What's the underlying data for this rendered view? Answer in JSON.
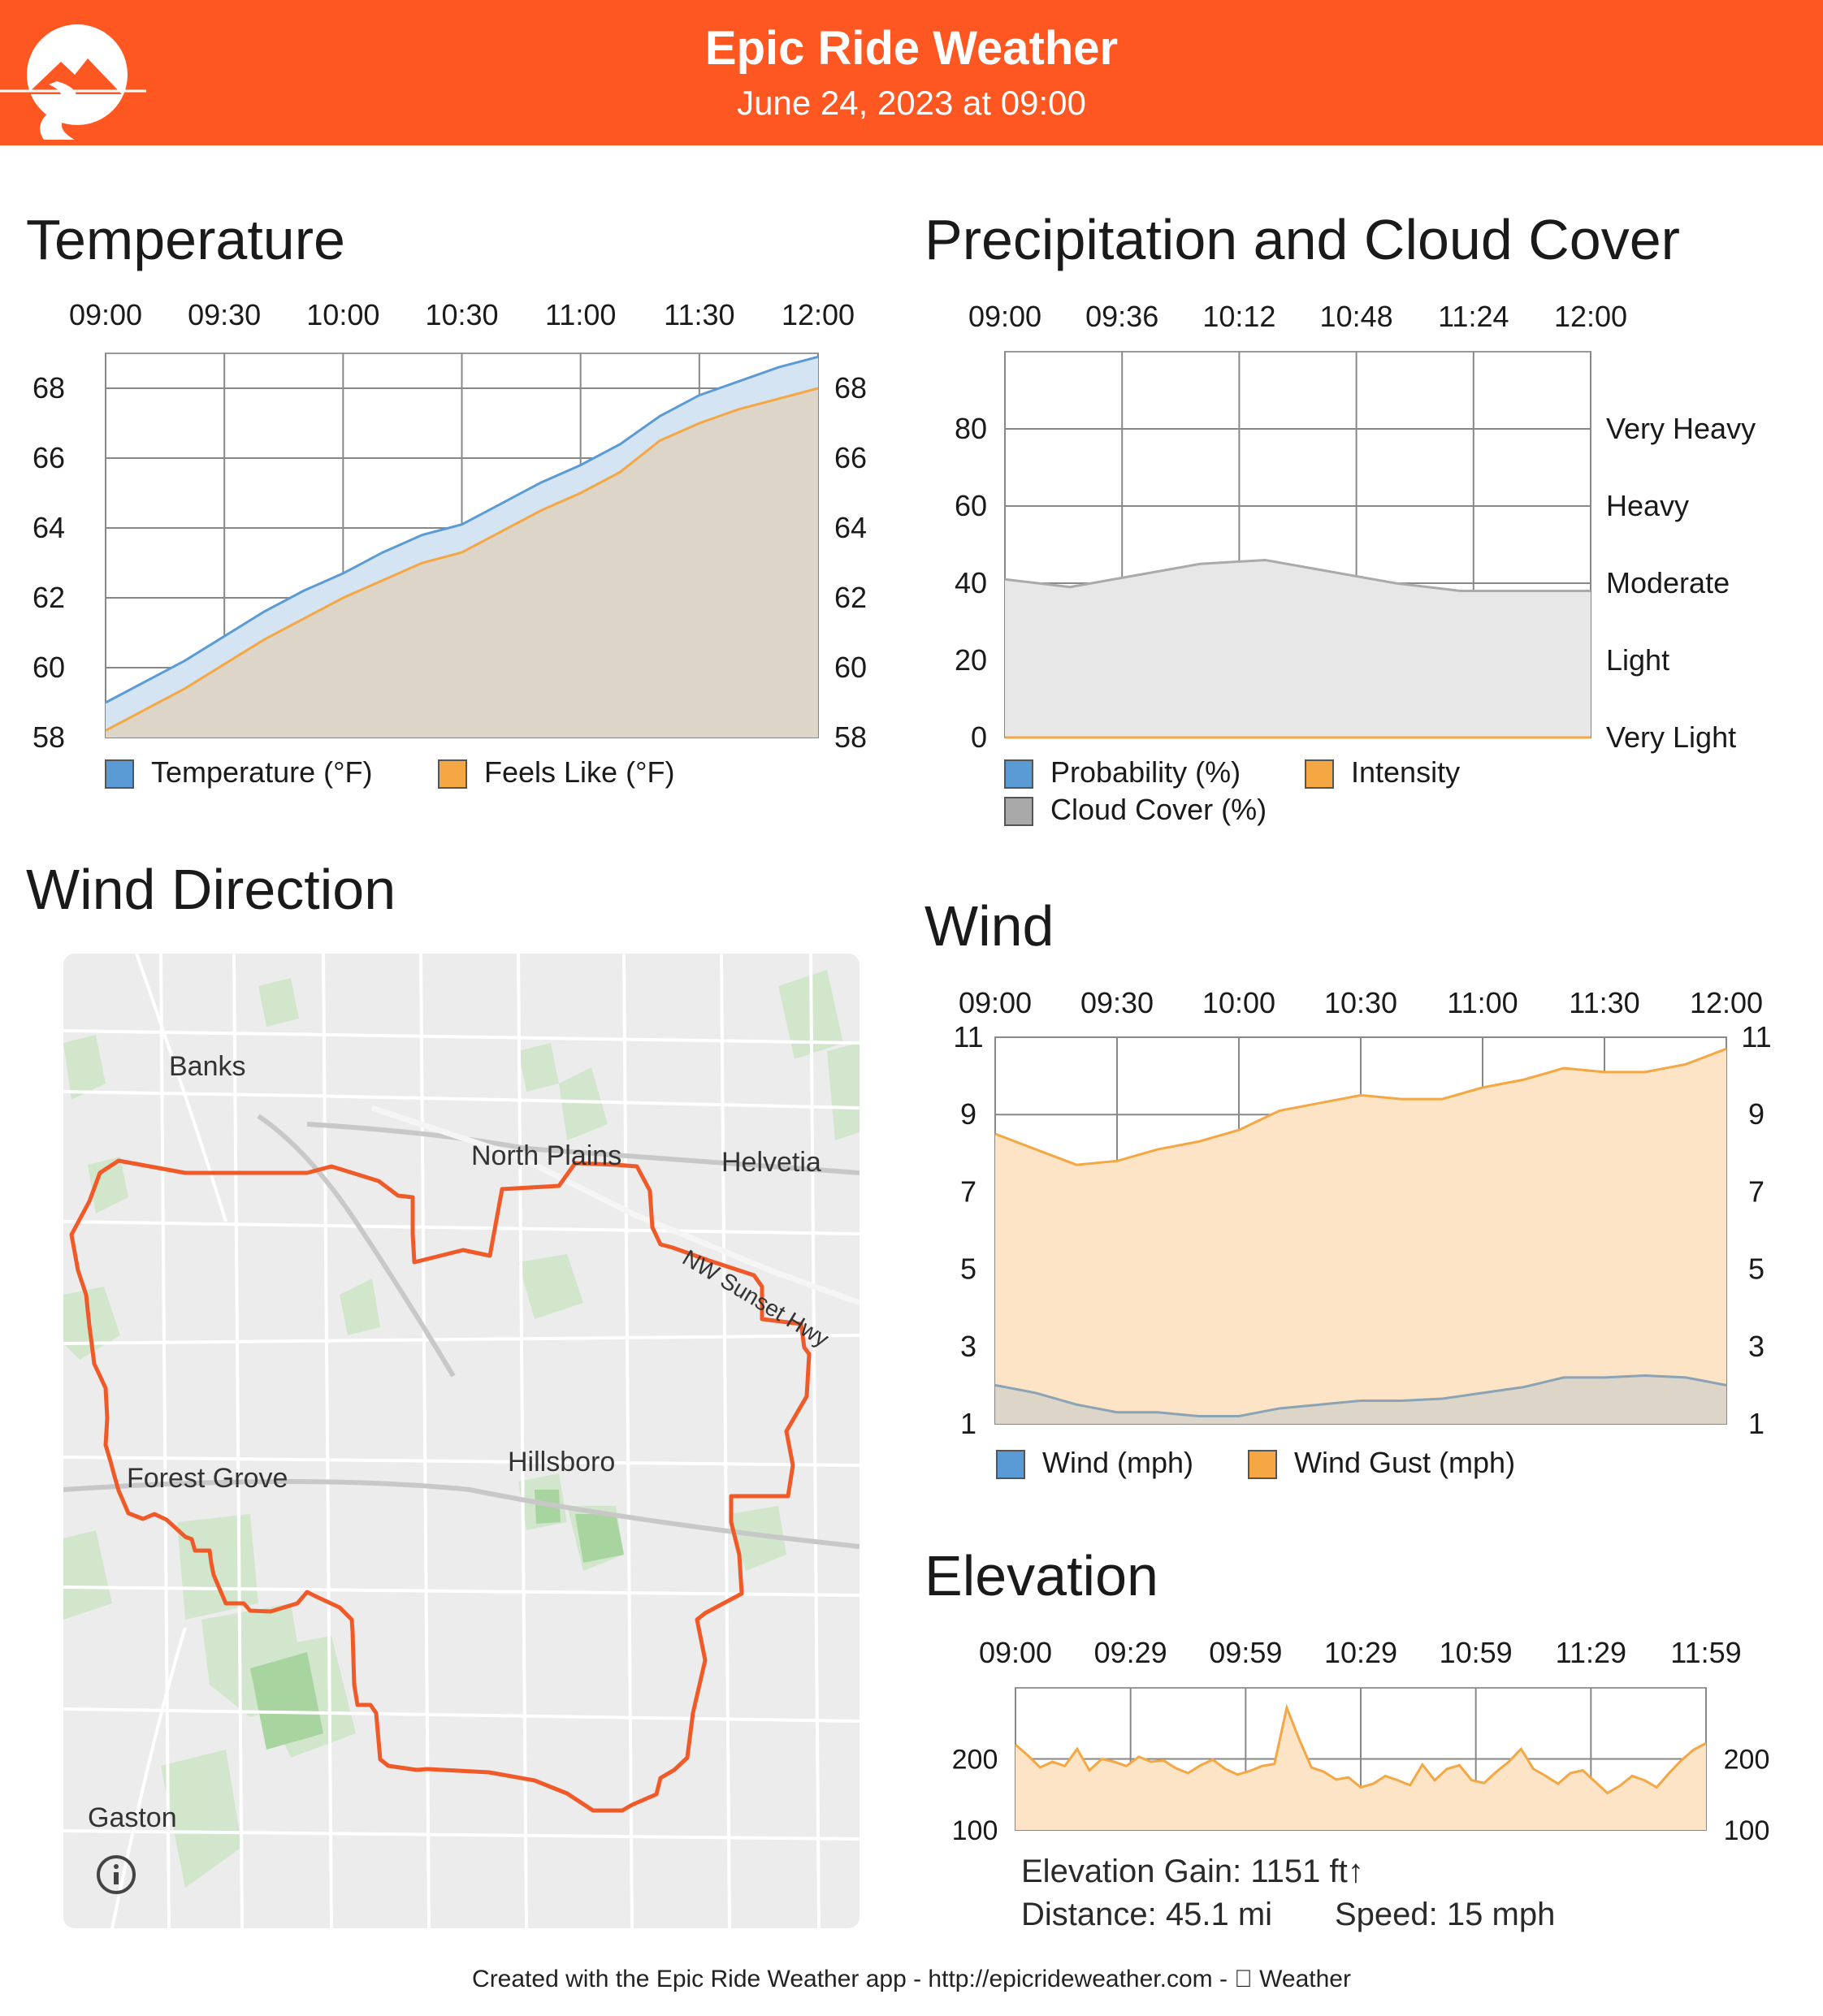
{
  "header": {
    "title": "Epic Ride Weather",
    "subtitle": "June 24, 2023 at 09:00"
  },
  "colors": {
    "brand": "#ff5722",
    "temperature": "#5b9bd5",
    "feels_like": "#f4a742",
    "cloud": "#a9a9a9",
    "route": "#f05a28"
  },
  "sections": {
    "temperature": "Temperature",
    "precipitation": "Precipitation and Cloud Cover",
    "wind_direction": "Wind Direction",
    "wind": "Wind",
    "elevation": "Elevation"
  },
  "map": {
    "labels": [
      "Banks",
      "North Plains",
      "Helvetia",
      "NW Sunset Hwy",
      "Hillsboro",
      "Forest Grove",
      "Gaston"
    ],
    "info_icon": "info-icon"
  },
  "elevation_stats": {
    "gain": "Elevation Gain: 1151 ft↑",
    "distance": "Distance: 45.1 mi",
    "speed": "Speed: 15 mph"
  },
  "footer": {
    "text": "Created with the Epic Ride Weather app - http://epicrideweather.com -  Weather"
  },
  "chart_data": [
    {
      "type": "area",
      "x_tick_labels": [
        "09:00",
        "09:30",
        "10:00",
        "10:30",
        "11:00",
        "11:30",
        "12:00"
      ],
      "ylim": [
        58,
        69
      ],
      "y_ticks": [
        "58",
        "60",
        "62",
        "64",
        "66",
        "68"
      ],
      "x": [
        0,
        10,
        20,
        30,
        40,
        50,
        60,
        70,
        80,
        90,
        100,
        110,
        120,
        130,
        140,
        150,
        160,
        170,
        180
      ],
      "series": [
        {
          "name": "Temperature (°F)",
          "values": [
            59.0,
            59.6,
            60.2,
            60.9,
            61.6,
            62.2,
            62.7,
            63.3,
            63.8,
            64.1,
            64.7,
            65.3,
            65.8,
            66.4,
            67.2,
            67.8,
            68.2,
            68.6,
            68.9
          ]
        },
        {
          "name": "Feels Like (°F)",
          "values": [
            58.2,
            58.8,
            59.4,
            60.1,
            60.8,
            61.4,
            62.0,
            62.5,
            63.0,
            63.3,
            63.9,
            64.5,
            65.0,
            65.6,
            66.5,
            67.0,
            67.4,
            67.7,
            68.0
          ]
        }
      ]
    },
    {
      "type": "area",
      "x_tick_labels": [
        "09:00",
        "09:36",
        "10:12",
        "10:48",
        "11:24",
        "12:00"
      ],
      "ylim": [
        0,
        100
      ],
      "y_ticks": [
        "0",
        "20",
        "40",
        "60",
        "80"
      ],
      "right_labels": [
        "Very Light",
        "Light",
        "Moderate",
        "Heavy",
        "Very Heavy"
      ],
      "x": [
        0,
        20,
        40,
        60,
        80,
        100,
        120,
        140,
        160,
        180
      ],
      "series": [
        {
          "name": "Probability (%)",
          "values": [
            0,
            0,
            0,
            0,
            0,
            0,
            0,
            0,
            0,
            0
          ]
        },
        {
          "name": "Intensity",
          "values": [
            0,
            0,
            0,
            0,
            0,
            0,
            0,
            0,
            0,
            0
          ]
        },
        {
          "name": "Cloud Cover (%)",
          "values": [
            41,
            39,
            42,
            45,
            46,
            43,
            40,
            38,
            38,
            38
          ]
        }
      ]
    },
    {
      "type": "area",
      "x_tick_labels": [
        "09:00",
        "09:30",
        "10:00",
        "10:30",
        "11:00",
        "11:30",
        "12:00"
      ],
      "ylim": [
        1,
        11
      ],
      "y_ticks": [
        "1",
        "3",
        "5",
        "7",
        "9",
        "11"
      ],
      "x": [
        0,
        10,
        20,
        30,
        40,
        50,
        60,
        70,
        80,
        90,
        100,
        110,
        120,
        130,
        140,
        150,
        160,
        170,
        180
      ],
      "series": [
        {
          "name": "Wind (mph)",
          "values": [
            2.0,
            1.8,
            1.5,
            1.3,
            1.3,
            1.2,
            1.2,
            1.4,
            1.5,
            1.6,
            1.6,
            1.65,
            1.8,
            1.95,
            2.2,
            2.2,
            2.25,
            2.2,
            2.0
          ]
        },
        {
          "name": "Wind Gust (mph)",
          "values": [
            8.5,
            8.1,
            7.7,
            7.8,
            8.1,
            8.3,
            8.6,
            9.1,
            9.3,
            9.5,
            9.4,
            9.4,
            9.7,
            9.9,
            10.2,
            10.1,
            10.1,
            10.3,
            10.7
          ]
        }
      ]
    },
    {
      "type": "area",
      "x_tick_labels": [
        "09:00",
        "09:29",
        "09:59",
        "10:29",
        "10:59",
        "11:29",
        "11:59"
      ],
      "ylim": [
        100,
        300
      ],
      "y_ticks": [
        "100",
        "200"
      ],
      "series": [
        {
          "name": "Elevation",
          "values": [
            220,
            205,
            188,
            196,
            190,
            214,
            184,
            200,
            196,
            190,
            203,
            196,
            198,
            187,
            180,
            191,
            199,
            186,
            178,
            183,
            190,
            193,
            272,
            228,
            188,
            182,
            171,
            174,
            160,
            165,
            176,
            170,
            163,
            192,
            170,
            186,
            191,
            170,
            166,
            182,
            196,
            214,
            186,
            176,
            165,
            180,
            184,
            168,
            152,
            162,
            176,
            170,
            160,
            180,
            198,
            213,
            222
          ]
        }
      ]
    }
  ]
}
